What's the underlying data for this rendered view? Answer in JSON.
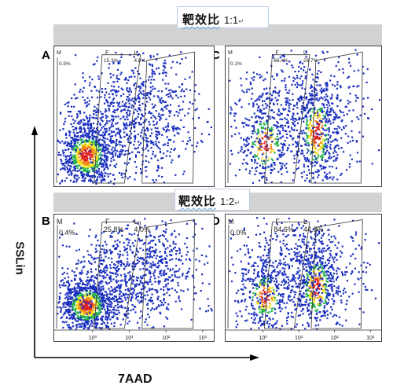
{
  "figure": {
    "top_ratio": {
      "label": "靶效比",
      "value": "1:1",
      "mark": "↵"
    },
    "mid_ratio": {
      "label": "靶效比",
      "value": "1:2",
      "mark": "↵"
    },
    "y_axis_label": "SSLin",
    "x_axis_label": "7AAD",
    "panels": [
      {
        "id": "A",
        "gate_m": "0.5%",
        "gate_f": "15.3%",
        "gate_l": "4.8%",
        "ticks": [],
        "profile": "early"
      },
      {
        "id": "C",
        "gate_m": "0.1%",
        "gate_f": "66.4%",
        "gate_l": "29.7%",
        "ticks": [],
        "profile": "late"
      },
      {
        "id": "B",
        "gate_m": "0.4%",
        "gate_f": "25.8%",
        "gate_l": "4.0%",
        "ticks": [
          "10⁰",
          "10¹",
          "10²",
          "10³"
        ],
        "profile": "early"
      },
      {
        "id": "D",
        "gate_m": "0.0%",
        "gate_f": "84.6%",
        "gate_l": "44.8%",
        "ticks": [
          "10⁰",
          "10¹",
          "10²",
          "10³"
        ],
        "profile": "late"
      }
    ],
    "gate_letters": {
      "m": "M",
      "f": "F",
      "l": "L"
    },
    "dot_colors": {
      "base": "#1a2fbf",
      "mid": "#22b24c",
      "warm": "#f2e21c",
      "hot": "#f08a12",
      "core": "#e02020"
    }
  }
}
